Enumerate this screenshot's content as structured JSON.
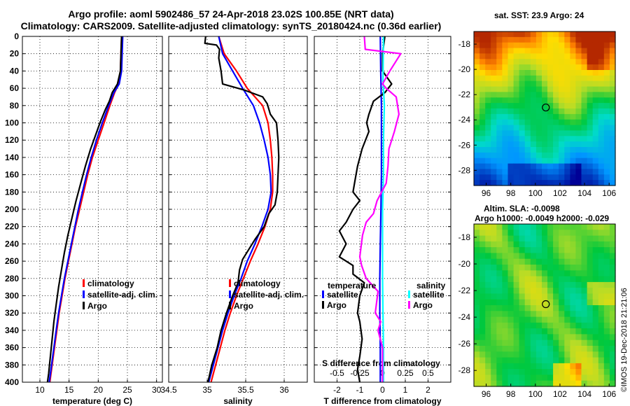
{
  "header": {
    "line1": "Argo profile: aoml 5902486_57 24-Apr-2018 23.02S 100.85E (NRT data)",
    "line2": "Climatology: CARS2009. Satellite-adjusted climatology: synTS_20180424.nc (0.36d earlier)"
  },
  "colors": {
    "climatology": "#ff0000",
    "satellite": "#0000ff",
    "argo": "#000000",
    "sal_satellite": "#00ffff",
    "sal_argo": "#ff00ff"
  },
  "chart_data": [
    {
      "type": "line",
      "xlabel": "temperature (deg C)",
      "ylabel": "",
      "xlim": [
        7,
        31
      ],
      "ylim": [
        400,
        0
      ],
      "xticks": [
        10,
        15,
        20,
        25,
        30
      ],
      "yticks": [
        0,
        20,
        40,
        60,
        80,
        100,
        120,
        140,
        160,
        180,
        200,
        220,
        240,
        260,
        280,
        300,
        320,
        340,
        360,
        380,
        400
      ],
      "grid": true,
      "legend": {
        "position": "bottom-right",
        "items": [
          "climatology",
          "satellite-adj. clim.",
          "Argo"
        ]
      },
      "series": [
        {
          "name": "climatology",
          "color": "#ff0000",
          "points": [
            [
              24,
              0
            ],
            [
              23.9,
              20
            ],
            [
              23.8,
              40
            ],
            [
              23.5,
              55
            ],
            [
              22.8,
              65
            ],
            [
              22,
              80
            ],
            [
              21,
              100
            ],
            [
              20,
              120
            ],
            [
              19,
              140
            ],
            [
              18.2,
              160
            ],
            [
              17.5,
              180
            ],
            [
              16.8,
              200
            ],
            [
              16.1,
              220
            ],
            [
              15.5,
              240
            ],
            [
              14.9,
              260
            ],
            [
              14.3,
              280
            ],
            [
              13.8,
              300
            ],
            [
              13.3,
              320
            ],
            [
              12.9,
              340
            ],
            [
              12.5,
              360
            ],
            [
              12.1,
              380
            ],
            [
              11.7,
              400
            ]
          ]
        },
        {
          "name": "satellite-adj. clim.",
          "color": "#0000ff",
          "points": [
            [
              24.2,
              0
            ],
            [
              24.1,
              20
            ],
            [
              24,
              40
            ],
            [
              23.6,
              55
            ],
            [
              22.7,
              65
            ],
            [
              21.8,
              80
            ],
            [
              20.7,
              100
            ],
            [
              19.7,
              120
            ],
            [
              18.8,
              140
            ],
            [
              18,
              160
            ],
            [
              17.3,
              180
            ],
            [
              16.6,
              200
            ],
            [
              16,
              220
            ],
            [
              15.4,
              240
            ],
            [
              14.8,
              260
            ],
            [
              14.2,
              280
            ],
            [
              13.7,
              300
            ],
            [
              13.2,
              320
            ],
            [
              12.8,
              340
            ],
            [
              12.4,
              360
            ],
            [
              12,
              380
            ],
            [
              11.6,
              400
            ]
          ]
        },
        {
          "name": "Argo",
          "color": "#000000",
          "points": [
            [
              24,
              0
            ],
            [
              23.9,
              20
            ],
            [
              23.8,
              40
            ],
            [
              23.3,
              55
            ],
            [
              22.4,
              65
            ],
            [
              21.9,
              75
            ],
            [
              21.2,
              85
            ],
            [
              20.3,
              100
            ],
            [
              19.5,
              115
            ],
            [
              18.7,
              130
            ],
            [
              17.8,
              150
            ],
            [
              17,
              170
            ],
            [
              16.2,
              190
            ],
            [
              15.5,
              210
            ],
            [
              14.8,
              230
            ],
            [
              14.2,
              250
            ],
            [
              13.7,
              270
            ],
            [
              13.2,
              290
            ],
            [
              12.8,
              310
            ],
            [
              12.4,
              330
            ],
            [
              12.1,
              350
            ],
            [
              11.8,
              370
            ],
            [
              11.5,
              390
            ],
            [
              11.3,
              400
            ]
          ]
        }
      ]
    },
    {
      "type": "line",
      "xlabel": "salinity",
      "ylabel": "",
      "xlim": [
        34.5,
        36.3
      ],
      "ylim": [
        400,
        0
      ],
      "xticks": [
        34.5,
        35,
        35.5,
        36
      ],
      "grid": true,
      "legend": {
        "position": "bottom-right",
        "items": [
          "climatology",
          "satellite-adj. clim.",
          "Argo"
        ]
      },
      "series": [
        {
          "name": "climatology",
          "color": "#ff0000",
          "points": [
            [
              35.15,
              0
            ],
            [
              35.22,
              20
            ],
            [
              35.38,
              40
            ],
            [
              35.52,
              60
            ],
            [
              35.72,
              80
            ],
            [
              35.79,
              100
            ],
            [
              35.82,
              120
            ],
            [
              35.84,
              140
            ],
            [
              35.85,
              160
            ],
            [
              35.85,
              180
            ],
            [
              35.82,
              200
            ],
            [
              35.75,
              220
            ],
            [
              35.66,
              240
            ],
            [
              35.56,
              260
            ],
            [
              35.47,
              280
            ],
            [
              35.38,
              300
            ],
            [
              35.3,
              320
            ],
            [
              35.23,
              340
            ],
            [
              35.17,
              360
            ],
            [
              35.11,
              380
            ],
            [
              35.05,
              400
            ]
          ]
        },
        {
          "name": "satellite-adj. clim.",
          "color": "#0000ff",
          "points": [
            [
              35.15,
              0
            ],
            [
              35.2,
              20
            ],
            [
              35.33,
              40
            ],
            [
              35.46,
              60
            ],
            [
              35.6,
              80
            ],
            [
              35.68,
              100
            ],
            [
              35.74,
              120
            ],
            [
              35.79,
              140
            ],
            [
              35.82,
              160
            ],
            [
              35.83,
              180
            ],
            [
              35.79,
              200
            ],
            [
              35.71,
              220
            ],
            [
              35.62,
              240
            ],
            [
              35.52,
              260
            ],
            [
              35.44,
              280
            ],
            [
              35.35,
              300
            ],
            [
              35.27,
              320
            ],
            [
              35.2,
              340
            ],
            [
              35.14,
              360
            ],
            [
              35.08,
              380
            ],
            [
              35.02,
              400
            ]
          ]
        },
        {
          "name": "Argo",
          "color": "#000000",
          "points": [
            [
              34.98,
              0
            ],
            [
              34.97,
              8
            ],
            [
              35.12,
              10
            ],
            [
              35.16,
              15
            ],
            [
              35.15,
              25
            ],
            [
              35.18,
              40
            ],
            [
              35.2,
              55
            ],
            [
              35.48,
              62
            ],
            [
              35.72,
              70
            ],
            [
              35.78,
              78
            ],
            [
              35.82,
              90
            ],
            [
              35.9,
              100
            ],
            [
              35.92,
              120
            ],
            [
              35.93,
              140
            ],
            [
              35.92,
              160
            ],
            [
              35.91,
              180
            ],
            [
              35.88,
              195
            ],
            [
              35.8,
              205
            ],
            [
              35.74,
              220
            ],
            [
              35.62,
              235
            ],
            [
              35.55,
              245
            ],
            [
              35.46,
              258
            ],
            [
              35.42,
              270
            ],
            [
              35.4,
              285
            ],
            [
              35.33,
              300
            ],
            [
              35.25,
              320
            ],
            [
              35.18,
              340
            ],
            [
              35.13,
              360
            ],
            [
              35.06,
              380
            ],
            [
              35.01,
              400
            ]
          ]
        }
      ]
    },
    {
      "type": "line",
      "xlabel": "T difference from climatology",
      "secondary_xlabel": "S difference from climatology",
      "ylabel": "",
      "xlim": [
        -3,
        3
      ],
      "ylim": [
        400,
        0
      ],
      "xticks": [
        -2,
        -1,
        0,
        1,
        2
      ],
      "secondary_xticks": [
        -0.5,
        -0.25,
        0,
        0.25,
        0.5
      ],
      "secondary_xticklabels": [
        "-0.5",
        "-0.25",
        "0",
        "0.25",
        "0.5"
      ],
      "grid": true,
      "legend": {
        "position": "bottom",
        "groups": [
          {
            "title": "temperature",
            "items": [
              "satellite",
              "Argo"
            ]
          },
          {
            "title": "salinity",
            "items": [
              "satellite",
              "Argo"
            ]
          }
        ]
      },
      "series": [
        {
          "name": "temperature satellite",
          "color": "#0000ff",
          "points": [
            [
              -0.1,
              0
            ],
            [
              -0.08,
              40
            ],
            [
              -0.05,
              80
            ],
            [
              -0.05,
              120
            ],
            [
              -0.05,
              160
            ],
            [
              -0.07,
              200
            ],
            [
              -0.1,
              240
            ],
            [
              -0.12,
              280
            ],
            [
              -0.12,
              320
            ],
            [
              -0.1,
              360
            ],
            [
              -0.1,
              400
            ]
          ]
        },
        {
          "name": "temperature Argo",
          "color": "#000000",
          "points": [
            [
              0.1,
              0
            ],
            [
              0,
              20
            ],
            [
              0,
              40
            ],
            [
              0.4,
              55
            ],
            [
              0.1,
              65
            ],
            [
              -0.4,
              75
            ],
            [
              -0.6,
              90
            ],
            [
              -0.7,
              100
            ],
            [
              -0.6,
              110
            ],
            [
              -0.9,
              130
            ],
            [
              -1.1,
              150
            ],
            [
              -1.2,
              165
            ],
            [
              -1.3,
              180
            ],
            [
              -1,
              190
            ],
            [
              -1.3,
              200
            ],
            [
              -1.6,
              215
            ],
            [
              -1.9,
              225
            ],
            [
              -1.6,
              240
            ],
            [
              -1.9,
              255
            ],
            [
              -1.3,
              265
            ],
            [
              -1.3,
              275
            ],
            [
              -0.8,
              285
            ],
            [
              -1,
              300
            ],
            [
              -1.1,
              320
            ],
            [
              -1,
              330
            ],
            [
              -0.9,
              350
            ],
            [
              -1,
              370
            ],
            [
              -1.1,
              385
            ],
            [
              -1,
              400
            ]
          ]
        },
        {
          "name": "salinity satellite",
          "color": "#00ffff",
          "points": [
            [
              0.01,
              0
            ],
            [
              0.005,
              50
            ],
            [
              0.02,
              80
            ],
            [
              0.01,
              120
            ],
            [
              0.01,
              160
            ],
            [
              0,
              200
            ],
            [
              0,
              240
            ],
            [
              0,
              280
            ],
            [
              0.005,
              320
            ],
            [
              0.01,
              360
            ],
            [
              0.01,
              400
            ]
          ]
        },
        {
          "name": "salinity Argo",
          "color": "#ff00ff",
          "points": [
            [
              -0.2,
              0
            ],
            [
              -0.19,
              15
            ],
            [
              0.2,
              20
            ],
            [
              0.08,
              40
            ],
            [
              0,
              55
            ],
            [
              0.04,
              60
            ],
            [
              0.15,
              70
            ],
            [
              0.18,
              90
            ],
            [
              0.13,
              110
            ],
            [
              0.07,
              130
            ],
            [
              0.06,
              150
            ],
            [
              0.04,
              170
            ],
            [
              -0.06,
              190
            ],
            [
              -0.1,
              205
            ],
            [
              -0.18,
              215
            ],
            [
              -0.22,
              230
            ],
            [
              -0.25,
              255
            ],
            [
              -0.23,
              265
            ],
            [
              -0.18,
              280
            ],
            [
              -0.05,
              295
            ],
            [
              -0.08,
              320
            ],
            [
              -0.02,
              330
            ],
            [
              -0.05,
              340
            ],
            [
              0,
              360
            ],
            [
              0,
              380
            ],
            [
              0,
              400
            ]
          ]
        }
      ]
    }
  ],
  "maps": {
    "sst": {
      "title": "sat. SST: 23.9 Argo: 24",
      "lon_ticks": [
        "96",
        "98",
        "100",
        "102",
        "104",
        "106"
      ],
      "lat_ticks": [
        "-18",
        "-20",
        "-22",
        "-24",
        "-26",
        "-28"
      ],
      "marker": {
        "lon": 100.85,
        "lat": -23.02
      }
    },
    "sla": {
      "title1": "Altim. SLA: -0.0098",
      "title2": "Argo h1000: -0.0049 h2000: -0.029",
      "lon_ticks": [
        "96",
        "98",
        "100",
        "102",
        "104",
        "106"
      ],
      "lat_ticks": [
        "-18",
        "-20",
        "-22",
        "-24",
        "-26",
        "-28"
      ],
      "marker": {
        "lon": 100.85,
        "lat": -23.02
      }
    }
  },
  "footer": {
    "stamp": "©IMOS 19-Dec-2018 21:21:06"
  }
}
